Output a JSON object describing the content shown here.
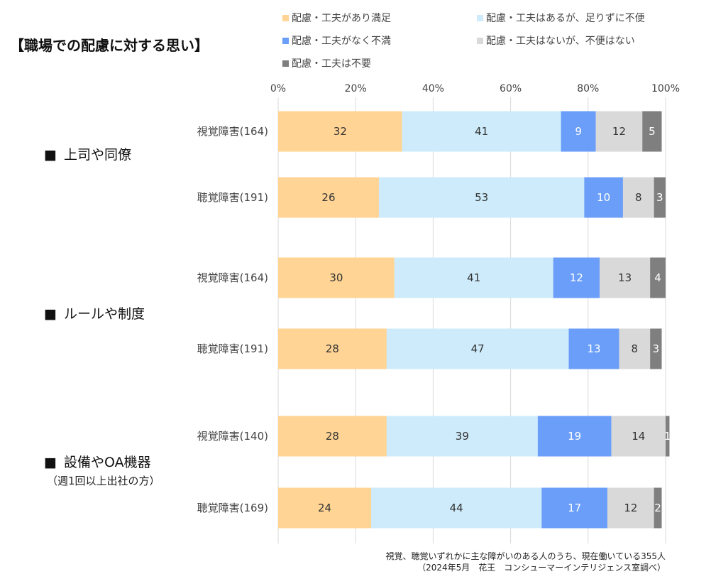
{
  "title": "【職場での配慮に対する思い】",
  "legend": [
    {
      "label": "配慮・工夫があり満足",
      "color": "#FFD494"
    },
    {
      "label": "配慮・工夫はあるが、足りずに不便",
      "color": "#CDEBFB"
    },
    {
      "label": "配慮・工夫がなく不満",
      "color": "#6A9EF8"
    },
    {
      "label": "配慮・工夫はないが、不便はない",
      "color": "#D9D9D9"
    },
    {
      "label": "配慮・工夫は不要",
      "color": "#7F7F7F"
    }
  ],
  "groups": [
    {
      "marker": "■",
      "label": "上司や同僚",
      "sublabel": ""
    },
    {
      "marker": "■",
      "label": "ルールや制度",
      "sublabel": ""
    },
    {
      "marker": "■",
      "label": "設備やOA機器",
      "sublabel": "（週1回以上出社の方）"
    }
  ],
  "note": {
    "line1": "視覚、聴覚いずれかに主な障がいのある人のうち、現在働いている355人",
    "line2": "（2024年5月　花王　コンシューマーインテリジェンス室調べ）"
  },
  "chart_data": {
    "type": "bar",
    "orientation": "horizontal",
    "stacked": "percent",
    "xlim": [
      0,
      100
    ],
    "x_ticks": [
      "0%",
      "20%",
      "40%",
      "60%",
      "80%",
      "100%"
    ],
    "grid": true,
    "legend_position": "top",
    "categories": [
      "視覚障害(164)",
      "聴覚障害(191)",
      "視覚障害(164)",
      "聴覚障害(191)",
      "視覚障害(140)",
      "聴覚障害(169)"
    ],
    "category_group": [
      "上司や同僚",
      "上司や同僚",
      "ルールや制度",
      "ルールや制度",
      "設備やOA機器",
      "設備やOA機器"
    ],
    "series": [
      {
        "name": "配慮・工夫があり満足",
        "values": [
          32,
          26,
          30,
          28,
          28,
          24
        ],
        "color": "#FFD494"
      },
      {
        "name": "配慮・工夫はあるが、足りずに不便",
        "values": [
          41,
          53,
          41,
          47,
          39,
          44
        ],
        "color": "#CDEBFB"
      },
      {
        "name": "配慮・工夫がなく不満",
        "values": [
          9,
          10,
          12,
          13,
          19,
          17
        ],
        "color": "#6A9EF8"
      },
      {
        "name": "配慮・工夫はないが、不便はない",
        "values": [
          12,
          8,
          13,
          8,
          14,
          12
        ],
        "color": "#D9D9D9"
      },
      {
        "name": "配慮・工夫は不要",
        "values": [
          5,
          3,
          4,
          3,
          1,
          2
        ],
        "color": "#7F7F7F"
      }
    ]
  }
}
